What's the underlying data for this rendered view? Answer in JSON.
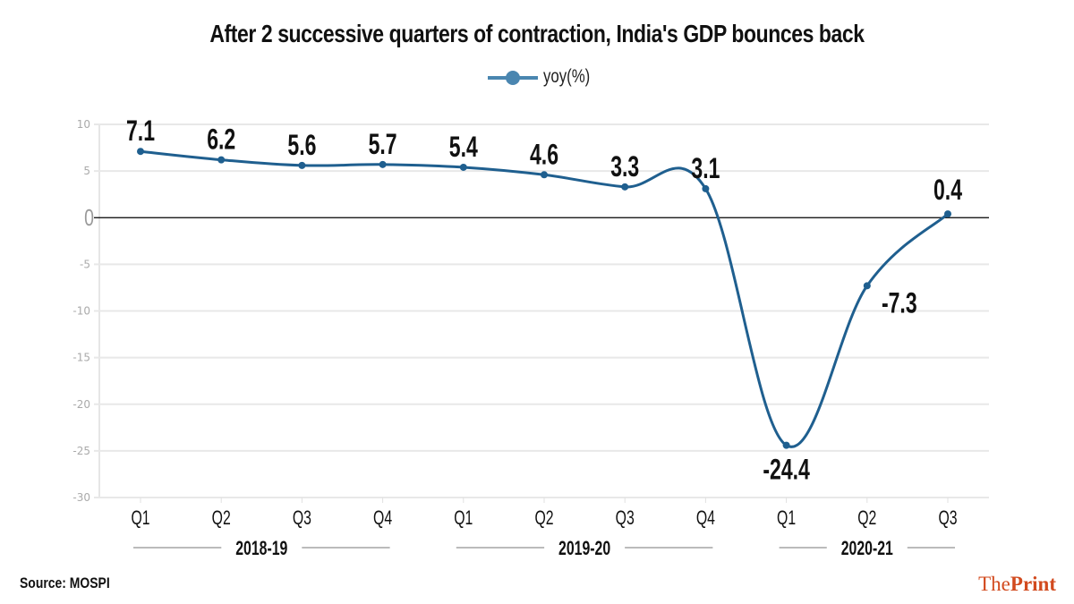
{
  "chart_data": {
    "type": "line",
    "title": "After 2 successive quarters of contraction, India's GDP bounces back",
    "series": [
      {
        "name": "yoy(%)",
        "color": "#1f5f8f",
        "values": [
          7.1,
          6.2,
          5.6,
          5.7,
          5.4,
          4.6,
          3.3,
          3.1,
          -24.4,
          -7.3,
          0.4
        ]
      }
    ],
    "categories": [
      "Q1",
      "Q2",
      "Q3",
      "Q4",
      "Q1",
      "Q2",
      "Q3",
      "Q4",
      "Q1",
      "Q2",
      "Q3"
    ],
    "category_groups": [
      {
        "label": "2018-19",
        "start": 0,
        "end": 3
      },
      {
        "label": "2019-20",
        "start": 4,
        "end": 7
      },
      {
        "label": "2020-21",
        "start": 8,
        "end": 10
      }
    ],
    "data_labels": [
      "7.1",
      "6.2",
      "5.6",
      "5.7",
      "5.4",
      "4.6",
      "3.3",
      "3.1",
      "-24.4",
      "-7.3",
      "0.4"
    ],
    "xlabel": "",
    "ylabel": "",
    "ylim": [
      -30,
      10
    ],
    "yticks": [
      10,
      5,
      0,
      -5,
      -10,
      -15,
      -20,
      -25,
      -30
    ],
    "ytick_labels": [
      "10",
      "5",
      "0",
      "-5",
      "-10",
      "-15",
      "-20",
      "-25",
      "-30"
    ],
    "grid": true,
    "legend": "top-center",
    "zero_line": true
  },
  "legend_label": "yoy(%)",
  "source": "Source: MOSPI",
  "brand": {
    "prefix": "The",
    "suffix": "Print",
    "color": "#d24a1e"
  }
}
